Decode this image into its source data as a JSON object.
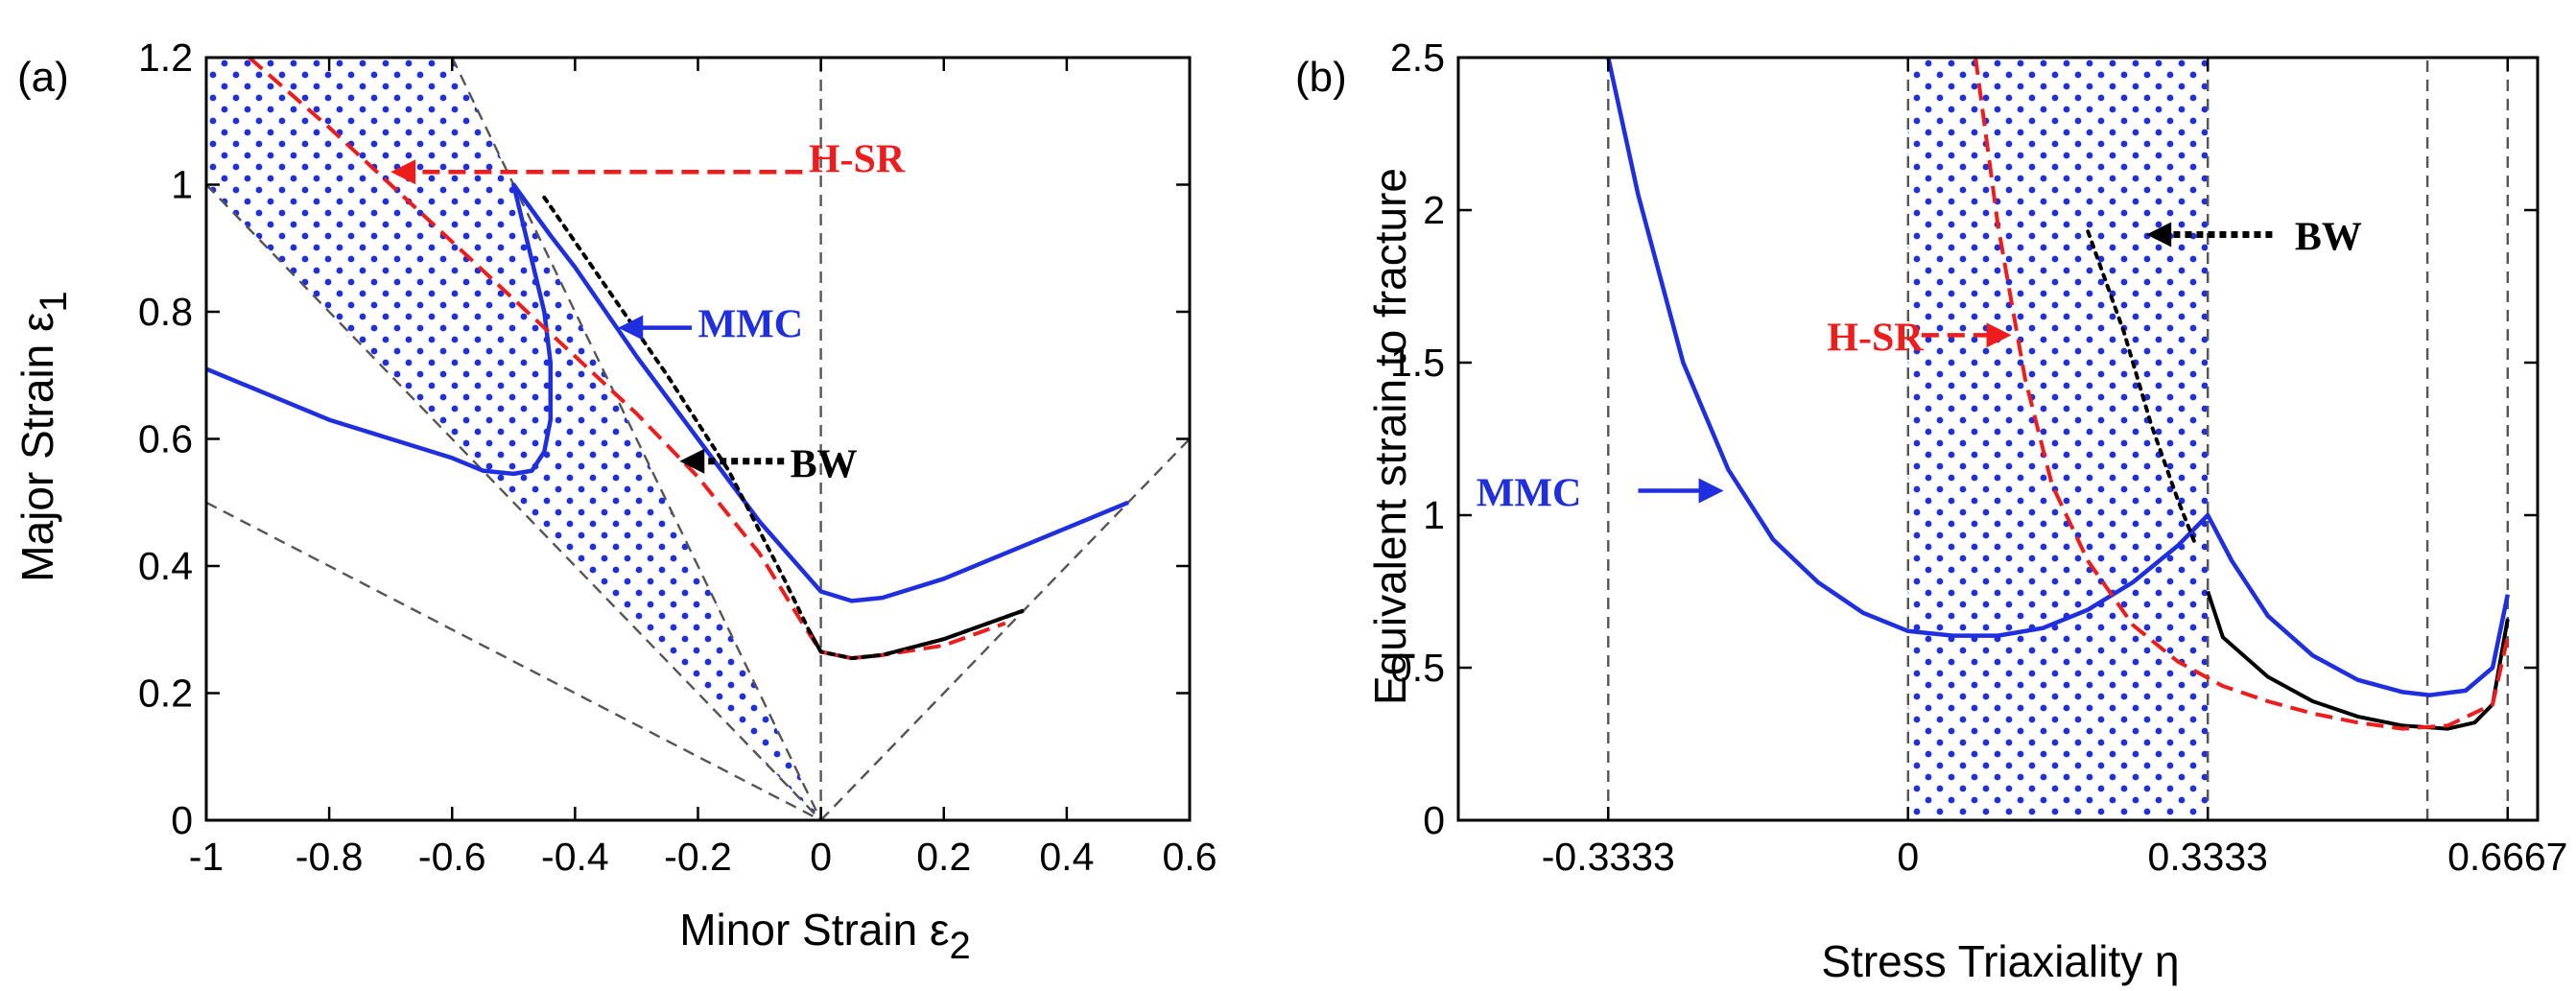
{
  "colors": {
    "mmc": "#1f2fe0",
    "hsr": "#ee1c1c",
    "bw": "#000000",
    "dots": "#1f2fe0",
    "ref": "#555555"
  },
  "chart_data": [
    {
      "type": "line",
      "panel_label": "(a)",
      "xlabel_text": "Minor Strain ε",
      "xlabel_sub": "2",
      "ylabel_text": "Major Strain ε",
      "ylabel_sub": "1",
      "xlim": [
        -1,
        0.6
      ],
      "ylim": [
        0,
        1.2
      ],
      "x_ticks": [
        -1,
        -0.8,
        -0.6,
        -0.4,
        -0.2,
        0,
        0.2,
        0.4,
        0.6
      ],
      "x_tick_labels": [
        "-1",
        "-0.8",
        "-0.6",
        "-0.4",
        "-0.2",
        "0",
        "0.2",
        "0.4",
        "0.6"
      ],
      "y_ticks": [
        0,
        0.2,
        0.4,
        0.6,
        0.8,
        1,
        1.2
      ],
      "y_tick_labels": [
        "0",
        "0.2",
        "0.4",
        "0.6",
        "0.8",
        "1",
        "1.2"
      ],
      "grid": false,
      "series": [
        {
          "name": "MMC",
          "color": "#1f2fe0",
          "style": "solid",
          "x": [
            -1.0,
            -0.9,
            -0.8,
            -0.7,
            -0.6,
            -0.55,
            -0.5,
            -0.47,
            -0.45,
            -0.44,
            -0.44,
            -0.45,
            -0.47,
            -0.49,
            -0.5,
            -0.47,
            -0.44,
            -0.4,
            -0.35,
            -0.3,
            -0.2,
            -0.1,
            0.0,
            0.05,
            0.1,
            0.2,
            0.3,
            0.4,
            0.5
          ],
          "y": [
            0.71,
            0.67,
            0.63,
            0.6,
            0.57,
            0.55,
            0.545,
            0.55,
            0.58,
            0.63,
            0.72,
            0.8,
            0.88,
            0.96,
            1.0,
            0.96,
            0.92,
            0.87,
            0.8,
            0.73,
            0.6,
            0.47,
            0.36,
            0.345,
            0.35,
            0.38,
            0.42,
            0.46,
            0.5
          ]
        },
        {
          "name": "H-SR",
          "color": "#ee1c1c",
          "style": "dashed",
          "x": [
            -0.93,
            -0.8,
            -0.7,
            -0.6,
            -0.5,
            -0.4,
            -0.3,
            -0.2,
            -0.1,
            -0.03,
            0.0,
            0.05,
            0.1,
            0.2,
            0.3
          ],
          "y": [
            1.2,
            1.09,
            1.0,
            0.91,
            0.82,
            0.73,
            0.64,
            0.54,
            0.42,
            0.31,
            0.265,
            0.255,
            0.26,
            0.275,
            0.31
          ]
        },
        {
          "name": "BW",
          "color": "#000000",
          "style": "dotted",
          "x": [
            -0.45,
            -0.35,
            -0.25,
            -0.15,
            -0.06,
            -0.02,
            0.0,
            0.05,
            0.1,
            0.2,
            0.33
          ],
          "y": [
            0.98,
            0.84,
            0.7,
            0.55,
            0.38,
            0.3,
            0.265,
            0.255,
            0.26,
            0.285,
            0.33
          ]
        }
      ],
      "bw_solid_segment": {
        "x": [
          -0.02,
          0.0,
          0.05,
          0.1,
          0.2,
          0.33
        ],
        "y": [
          0.3,
          0.265,
          0.255,
          0.26,
          0.285,
          0.33
        ]
      },
      "reference_lines": [
        {
          "x": [
            0,
            0
          ],
          "y": [
            0,
            1.2
          ]
        },
        {
          "x": [
            -1,
            0
          ],
          "y": [
            1,
            0
          ]
        },
        {
          "x": [
            -1,
            0
          ],
          "y": [
            0.5,
            0
          ]
        },
        {
          "x": [
            0,
            0.6
          ],
          "y": [
            0,
            0.6
          ]
        },
        {
          "x": [
            -0.6,
            0
          ],
          "y": [
            1.2,
            0
          ]
        }
      ],
      "shaded_region": {
        "x": [
          -1,
          -0.6,
          0,
          -1
        ],
        "y": [
          1.2,
          1.2,
          0,
          1
        ]
      },
      "annotations": [
        {
          "text": "H-SR",
          "color": "#ee1c1c",
          "text_x": -0.02,
          "text_y": 1.02,
          "arrow_from": [
            -0.03,
            1.02
          ],
          "arrow_to": [
            -0.7,
            1.02
          ],
          "style": "dashed"
        },
        {
          "text": "MMC",
          "color": "#1f2fe0",
          "text_x": -0.2,
          "text_y": 0.76,
          "arrow_from": [
            -0.21,
            0.775
          ],
          "arrow_to": [
            -0.33,
            0.775
          ],
          "style": "solid"
        },
        {
          "text": "BW",
          "color": "#000000",
          "text_x": -0.05,
          "text_y": 0.54,
          "arrow_from": [
            -0.06,
            0.565
          ],
          "arrow_to": [
            -0.23,
            0.565
          ],
          "style": "dotted"
        }
      ]
    },
    {
      "type": "line",
      "panel_label": "(b)",
      "xlabel_text": "Stress Triaxiality η",
      "ylabel_text": "Equivalent strain to fracture",
      "xlim": [
        -0.5,
        0.7
      ],
      "ylim": [
        0,
        2.5
      ],
      "x_ticks": [
        -0.3333,
        0,
        0.3333,
        0.6667
      ],
      "x_tick_labels": [
        "-0.3333",
        "0",
        "0.3333",
        "0.6667"
      ],
      "y_ticks": [
        0,
        0.5,
        1,
        1.5,
        2,
        2.5
      ],
      "y_tick_labels": [
        "0",
        "0.5",
        "1",
        "1.5",
        "2",
        "2.5"
      ],
      "grid": false,
      "series": [
        {
          "name": "MMC",
          "color": "#1f2fe0",
          "style": "solid",
          "x": [
            -0.3333,
            -0.3,
            -0.25,
            -0.2,
            -0.15,
            -0.1,
            -0.05,
            0.0,
            0.05,
            0.1,
            0.15,
            0.2,
            0.25,
            0.3,
            0.3333,
            0.36,
            0.4,
            0.45,
            0.5,
            0.55,
            0.58,
            0.62,
            0.65,
            0.6667
          ],
          "y": [
            2.5,
            2.05,
            1.5,
            1.15,
            0.92,
            0.78,
            0.68,
            0.62,
            0.605,
            0.605,
            0.63,
            0.69,
            0.78,
            0.9,
            1.0,
            0.85,
            0.67,
            0.54,
            0.46,
            0.42,
            0.41,
            0.425,
            0.5,
            0.74
          ]
        },
        {
          "name": "H-SR",
          "color": "#ee1c1c",
          "style": "dashed",
          "x": [
            0.075,
            0.1,
            0.13,
            0.16,
            0.2,
            0.25,
            0.3,
            0.35,
            0.4,
            0.45,
            0.5,
            0.55,
            0.6,
            0.65,
            0.6667
          ],
          "y": [
            2.5,
            1.95,
            1.45,
            1.1,
            0.85,
            0.64,
            0.52,
            0.44,
            0.39,
            0.35,
            0.32,
            0.3,
            0.31,
            0.38,
            0.6
          ]
        },
        {
          "name": "BW",
          "color": "#000000",
          "style": "dotted",
          "x": [
            0.2,
            0.24,
            0.27,
            0.3,
            0.32
          ],
          "y": [
            1.93,
            1.6,
            1.3,
            1.05,
            0.9
          ]
        }
      ],
      "bw_solid_segment": {
        "x": [
          0.3333,
          0.35,
          0.4,
          0.45,
          0.5,
          0.55,
          0.6,
          0.63,
          0.65,
          0.6667
        ],
        "y": [
          0.75,
          0.6,
          0.47,
          0.39,
          0.34,
          0.31,
          0.3,
          0.32,
          0.38,
          0.66
        ]
      },
      "reference_lines": [
        {
          "x": [
            -0.3333,
            -0.3333
          ],
          "y": [
            0,
            2.5
          ]
        },
        {
          "x": [
            0,
            0
          ],
          "y": [
            0,
            2.5
          ]
        },
        {
          "x": [
            0.3333,
            0.3333
          ],
          "y": [
            0,
            2.5
          ]
        },
        {
          "x": [
            0.5774,
            0.5774
          ],
          "y": [
            0,
            2.5
          ]
        },
        {
          "x": [
            0.6667,
            0.6667
          ],
          "y": [
            0,
            2.5
          ]
        }
      ],
      "shaded_region": {
        "x": [
          0,
          0.3333,
          0.3333,
          0
        ],
        "y": [
          0,
          0,
          2.5,
          2.5
        ]
      },
      "annotations": [
        {
          "text": "MMC",
          "color": "#1f2fe0",
          "text_x": -0.48,
          "text_y": 1.03,
          "arrow_from": [
            -0.3,
            1.08
          ],
          "arrow_to": [
            -0.205,
            1.08
          ],
          "style": "solid"
        },
        {
          "text": "H-SR",
          "color": "#ee1c1c",
          "text_x": -0.09,
          "text_y": 1.54,
          "arrow_from": [
            0.015,
            1.59
          ],
          "arrow_to": [
            0.115,
            1.59
          ],
          "style": "dashed"
        },
        {
          "text": "BW",
          "color": "#000000",
          "text_x": 0.43,
          "text_y": 1.87,
          "arrow_from": [
            0.405,
            1.92
          ],
          "arrow_to": [
            0.265,
            1.92
          ],
          "style": "dotted"
        }
      ]
    }
  ]
}
